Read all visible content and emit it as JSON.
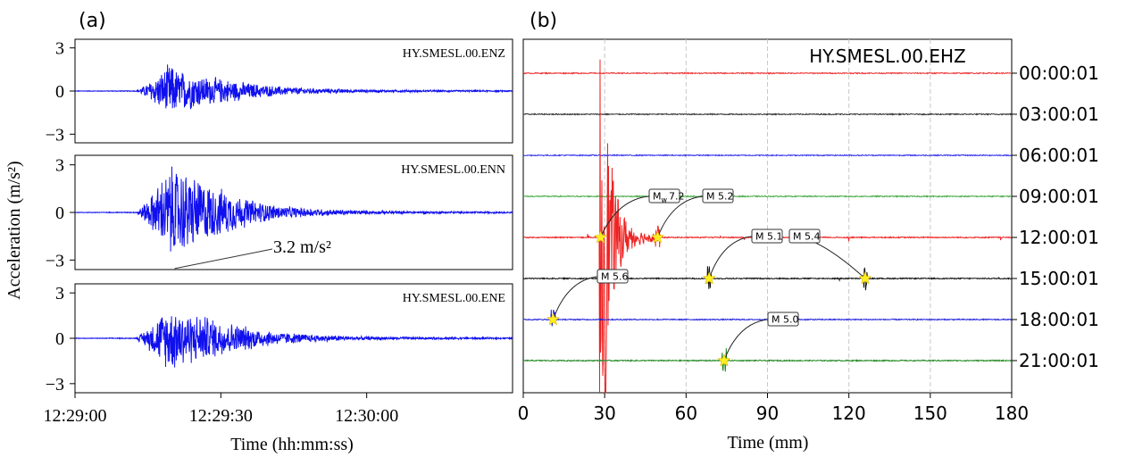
{
  "chart_data": [
    {
      "type": "line",
      "panel_label": "(a)",
      "xlabel": "Time  (hh:mm:ss)",
      "ylabel": "Acceleration (m/s²)",
      "x_ticks": [
        "12:29:00",
        "12:29:30",
        "12:30:00"
      ],
      "x_tick_seconds": [
        0,
        30,
        60
      ],
      "xlim_seconds": [
        0,
        90
      ],
      "y_ticks": [
        3,
        0,
        -3
      ],
      "ylim": [
        -3.6,
        3.6
      ],
      "series_color": "#1010ee",
      "series": [
        {
          "name": "HY.SMESL.00.ENZ",
          "envelope": [
            [
              0,
              0.02
            ],
            [
              12.5,
              0.03
            ],
            [
              14,
              0.35
            ],
            [
              16,
              0.9
            ],
            [
              18,
              1.5
            ],
            [
              19.5,
              2.1
            ],
            [
              21,
              1.6
            ],
            [
              24,
              1.4
            ],
            [
              27,
              1.1
            ],
            [
              31,
              0.9
            ],
            [
              36,
              0.6
            ],
            [
              42,
              0.35
            ],
            [
              50,
              0.2
            ],
            [
              60,
              0.1
            ],
            [
              75,
              0.07
            ],
            [
              90,
              0.05
            ]
          ]
        },
        {
          "name": "HY.SMESL.00.ENN",
          "envelope": [
            [
              0,
              0.02
            ],
            [
              12.5,
              0.03
            ],
            [
              14,
              0.5
            ],
            [
              16,
              1.3
            ],
            [
              18,
              2.4
            ],
            [
              20,
              3.2
            ],
            [
              22,
              2.9
            ],
            [
              24,
              2.6
            ],
            [
              27,
              2.0
            ],
            [
              31,
              1.5
            ],
            [
              36,
              0.9
            ],
            [
              42,
              0.45
            ],
            [
              50,
              0.25
            ],
            [
              60,
              0.12
            ],
            [
              75,
              0.08
            ],
            [
              90,
              0.05
            ]
          ],
          "annotation": {
            "text": "3.2 m/s²",
            "x": 20.5,
            "y": -3.2
          }
        },
        {
          "name": "HY.SMESL.00.ENE",
          "envelope": [
            [
              0,
              0.02
            ],
            [
              12.5,
              0.03
            ],
            [
              14,
              0.45
            ],
            [
              16,
              1.1
            ],
            [
              18,
              1.9
            ],
            [
              20,
              2.3
            ],
            [
              22,
              2.1
            ],
            [
              24,
              1.8
            ],
            [
              27,
              1.6
            ],
            [
              31,
              1.2
            ],
            [
              36,
              0.8
            ],
            [
              42,
              0.45
            ],
            [
              50,
              0.25
            ],
            [
              60,
              0.12
            ],
            [
              75,
              0.08
            ],
            [
              90,
              0.05
            ]
          ]
        }
      ]
    },
    {
      "type": "line",
      "panel_label": "(b)",
      "title": "HY.SMESL.00.EHZ",
      "xlabel": "Time (mm)",
      "x_ticks": [
        0,
        30,
        60,
        90,
        120,
        150,
        180
      ],
      "xlim": [
        0,
        180
      ],
      "grid": "vertical-dashed",
      "traces": [
        {
          "label": "00:00:01",
          "color": "#ee3333"
        },
        {
          "label": "03:00:01",
          "color": "#333333"
        },
        {
          "label": "06:00:01",
          "color": "#3333ee"
        },
        {
          "label": "09:00:01",
          "color": "#44aa44"
        },
        {
          "label": "12:00:01",
          "color": "#ee2222"
        },
        {
          "label": "15:00:01",
          "color": "#111111"
        },
        {
          "label": "18:00:01",
          "color": "#2222dd"
        },
        {
          "label": "21:00:01",
          "color": "#228822"
        }
      ],
      "events": [
        {
          "label": "M",
          "sub": "w",
          "mag": "7.2",
          "trace": 4,
          "minute": 28.5
        },
        {
          "label": "M 5.2",
          "trace": 4,
          "minute": 49.5
        },
        {
          "label": "M 5.1",
          "trace": 5,
          "minute": 68.5
        },
        {
          "label": "M 5.4",
          "trace": 5,
          "minute": 126
        },
        {
          "label": "M 5.6",
          "trace": 6,
          "minute": 11
        },
        {
          "label": "M 5.0",
          "trace": 7,
          "minute": 74
        }
      ]
    }
  ]
}
